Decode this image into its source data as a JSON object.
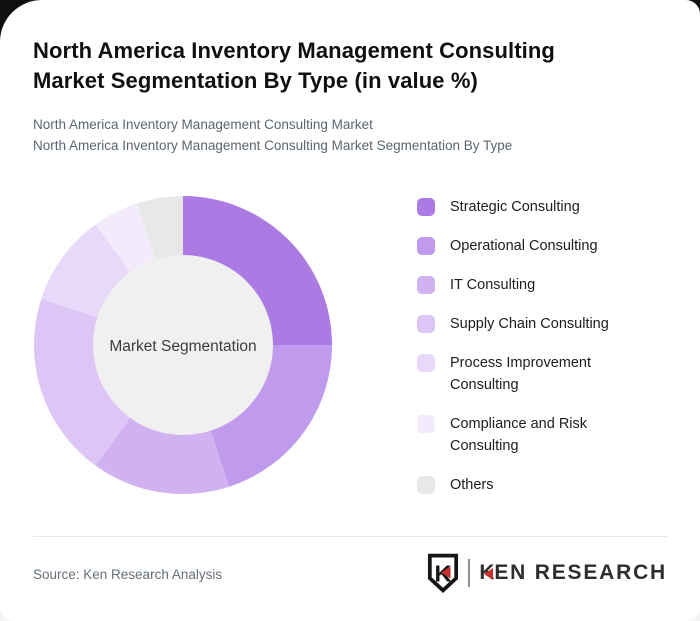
{
  "header": {
    "title_lines": [
      "North America Inventory Management Consulting",
      "Market Segmentation By Type (in value %)"
    ],
    "subtitles": [
      "North America Inventory Management Consulting Market",
      "North America Inventory Management Consulting Market Segmentation By Type"
    ]
  },
  "chart_data": {
    "type": "pie",
    "variant": "donut",
    "title": "North America Inventory Management Consulting Market Segmentation By Type (in value %)",
    "center_label": "Market Segmentation",
    "unit": "value %",
    "start_angle_deg": 0,
    "direction": "clockwise",
    "legend_position": "right",
    "hole_color": "#f0f0f0",
    "center_label_color": "#3c3c3c",
    "categories": [
      "Strategic Consulting",
      "Operational Consulting",
      "IT Consulting",
      "Supply Chain Consulting",
      "Process Improvement Consulting",
      "Compliance and Risk Consulting",
      "Others"
    ],
    "values": [
      25,
      20,
      15,
      20,
      10,
      5,
      5
    ],
    "colors": [
      "#ab7ae2",
      "#c09aec",
      "#d1b2f1",
      "#ddc6f5",
      "#e8d8f9",
      "#f1ebfb",
      "#e8e8e9"
    ]
  },
  "footer": {
    "source": "Source: Ken Research Analysis",
    "brand": {
      "name": "KEN RESEARCH",
      "emblem_letter": "K",
      "wordmark_first_letter": "K",
      "wordmark_rest": "EN RESEARCH",
      "accent_color": "#c5312f"
    }
  }
}
